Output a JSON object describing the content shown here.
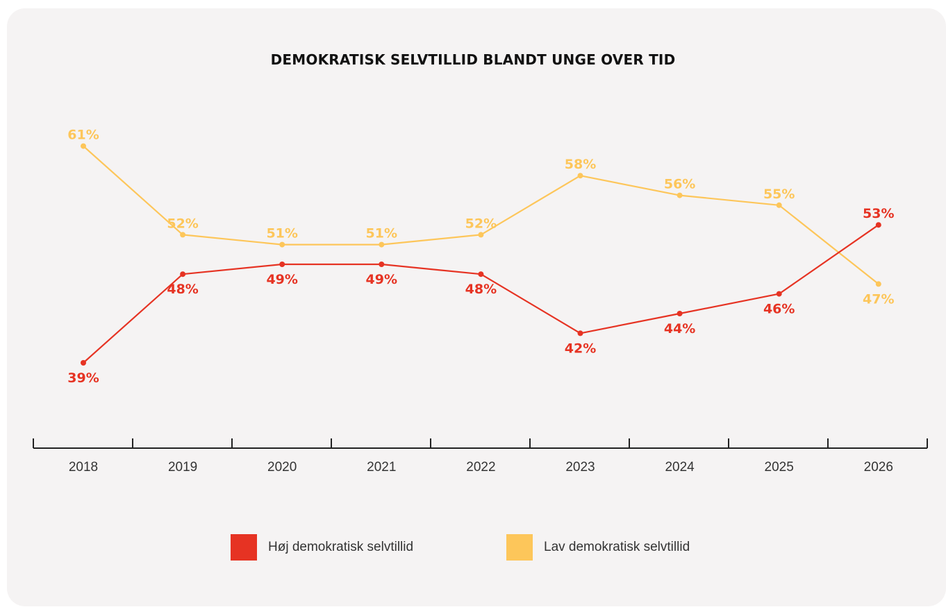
{
  "chart_data": {
    "type": "line",
    "title": "DEMOKRATISK SELVTILLID BLANDT UNGE OVER TID",
    "categories": [
      "2018",
      "2019",
      "2020",
      "2021",
      "2022",
      "2023",
      "2024",
      "2025",
      "2026"
    ],
    "series": [
      {
        "name": "Høj demokratisk selvtillid",
        "color": "#e63323",
        "values": [
          39,
          48,
          49,
          49,
          48,
          42,
          44,
          46,
          53
        ],
        "labels": [
          "39%",
          "48%",
          "49%",
          "49%",
          "48%",
          "42%",
          "44%",
          "46%",
          "53%"
        ]
      },
      {
        "name": "Lav demokratisk selvtillid",
        "color": "#fdc65a",
        "values": [
          61,
          52,
          51,
          51,
          52,
          58,
          56,
          55,
          47
        ],
        "labels": [
          "61%",
          "52%",
          "51%",
          "51%",
          "52%",
          "58%",
          "56%",
          "55%",
          "47%"
        ]
      }
    ],
    "grid": false,
    "legend_position": "bottom"
  }
}
